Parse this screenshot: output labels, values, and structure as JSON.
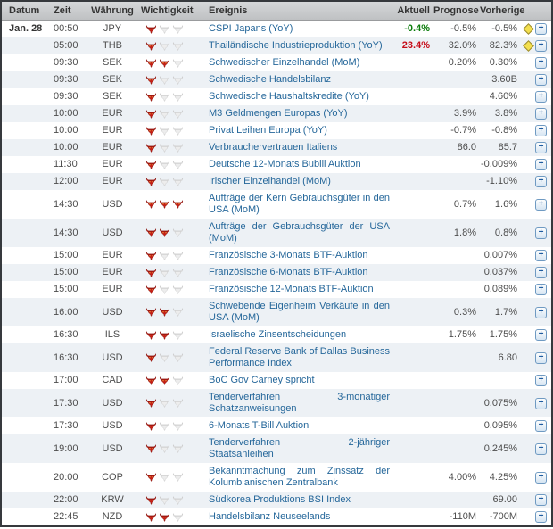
{
  "table": {
    "columns": {
      "datum": "Datum",
      "zeit": "Zeit",
      "waehrung": "Währung",
      "wichtigkeit": "Wichtigkeit",
      "ereignis": "Ereignis",
      "aktuell": "Aktuell",
      "prognose": "Prognose",
      "vorherige": "Vorherige"
    },
    "importance_scale_max": 3,
    "rows": [
      {
        "datum": "Jan. 28",
        "zeit": "00:50",
        "waehrung": "JPY",
        "wichtigkeit": 1,
        "ereignis": "CSPI Japans (YoY)",
        "aktuell": "-0.4%",
        "aktuell_status": "green",
        "prognose": "-0.5%",
        "vorherige": "-0.5%",
        "alert": true
      },
      {
        "datum": "",
        "zeit": "05:00",
        "waehrung": "THB",
        "wichtigkeit": 1,
        "ereignis": "Thailändische Industrieproduktion (YoY)",
        "aktuell": "23.4%",
        "aktuell_status": "red",
        "prognose": "32.0%",
        "vorherige": "82.3%",
        "alert": true
      },
      {
        "datum": "",
        "zeit": "09:30",
        "waehrung": "SEK",
        "wichtigkeit": 2,
        "ereignis": "Schwedischer Einzelhandel (MoM)",
        "aktuell": "",
        "aktuell_status": "",
        "prognose": "0.20%",
        "vorherige": "0.30%",
        "alert": false
      },
      {
        "datum": "",
        "zeit": "09:30",
        "waehrung": "SEK",
        "wichtigkeit": 1,
        "ereignis": "Schwedische Handelsbilanz",
        "aktuell": "",
        "aktuell_status": "",
        "prognose": "",
        "vorherige": "3.60B",
        "alert": false
      },
      {
        "datum": "",
        "zeit": "09:30",
        "waehrung": "SEK",
        "wichtigkeit": 1,
        "ereignis": "Schwedische Haushaltskredite (YoY)",
        "aktuell": "",
        "aktuell_status": "",
        "prognose": "",
        "vorherige": "4.60%",
        "alert": false
      },
      {
        "datum": "",
        "zeit": "10:00",
        "waehrung": "EUR",
        "wichtigkeit": 1,
        "ereignis": "M3 Geldmengen Europas (YoY)",
        "aktuell": "",
        "aktuell_status": "",
        "prognose": "3.9%",
        "vorherige": "3.8%",
        "alert": false
      },
      {
        "datum": "",
        "zeit": "10:00",
        "waehrung": "EUR",
        "wichtigkeit": 1,
        "ereignis": "Privat Leihen Europa (YoY)",
        "aktuell": "",
        "aktuell_status": "",
        "prognose": "-0.7%",
        "vorherige": "-0.8%",
        "alert": false
      },
      {
        "datum": "",
        "zeit": "10:00",
        "waehrung": "EUR",
        "wichtigkeit": 1,
        "ereignis": "Verbrauchervertrauen Italiens",
        "aktuell": "",
        "aktuell_status": "",
        "prognose": "86.0",
        "vorherige": "85.7",
        "alert": false
      },
      {
        "datum": "",
        "zeit": "11:30",
        "waehrung": "EUR",
        "wichtigkeit": 1,
        "ereignis": "Deutsche 12-Monats Bubill Auktion",
        "aktuell": "",
        "aktuell_status": "",
        "prognose": "",
        "vorherige": "-0.009%",
        "alert": false
      },
      {
        "datum": "",
        "zeit": "12:00",
        "waehrung": "EUR",
        "wichtigkeit": 1,
        "ereignis": "Irischer Einzelhandel (MoM)",
        "aktuell": "",
        "aktuell_status": "",
        "prognose": "",
        "vorherige": "-1.10%",
        "alert": false
      },
      {
        "datum": "",
        "zeit": "14:30",
        "waehrung": "USD",
        "wichtigkeit": 3,
        "ereignis": "Aufträge der Kern Gebrauchsgüter in den USA (MoM)",
        "aktuell": "",
        "aktuell_status": "",
        "prognose": "0.7%",
        "vorherige": "1.6%",
        "alert": false
      },
      {
        "datum": "",
        "zeit": "14:30",
        "waehrung": "USD",
        "wichtigkeit": 2,
        "ereignis": "Aufträge der Gebrauchsgüter der USA (MoM)",
        "aktuell": "",
        "aktuell_status": "",
        "prognose": "1.8%",
        "vorherige": "0.8%",
        "alert": false
      },
      {
        "datum": "",
        "zeit": "15:00",
        "waehrung": "EUR",
        "wichtigkeit": 1,
        "ereignis": "Französische 3-Monats BTF-Auktion",
        "aktuell": "",
        "aktuell_status": "",
        "prognose": "",
        "vorherige": "0.007%",
        "alert": false
      },
      {
        "datum": "",
        "zeit": "15:00",
        "waehrung": "EUR",
        "wichtigkeit": 1,
        "ereignis": "Französische 6-Monats BTF-Auktion",
        "aktuell": "",
        "aktuell_status": "",
        "prognose": "",
        "vorherige": "0.037%",
        "alert": false
      },
      {
        "datum": "",
        "zeit": "15:00",
        "waehrung": "EUR",
        "wichtigkeit": 1,
        "ereignis": "Französische 12-Monats BTF-Auktion",
        "aktuell": "",
        "aktuell_status": "",
        "prognose": "",
        "vorherige": "0.089%",
        "alert": false
      },
      {
        "datum": "",
        "zeit": "16:00",
        "waehrung": "USD",
        "wichtigkeit": 2,
        "ereignis": "Schwebende Eigenheim Verkäufe in den USA (MoM)",
        "aktuell": "",
        "aktuell_status": "",
        "prognose": "0.3%",
        "vorherige": "1.7%",
        "alert": false
      },
      {
        "datum": "",
        "zeit": "16:30",
        "waehrung": "ILS",
        "wichtigkeit": 2,
        "ereignis": "Israelische Zinsentscheidungen",
        "aktuell": "",
        "aktuell_status": "",
        "prognose": "1.75%",
        "vorherige": "1.75%",
        "alert": false
      },
      {
        "datum": "",
        "zeit": "16:30",
        "waehrung": "USD",
        "wichtigkeit": 1,
        "ereignis": "Federal Reserve Bank of Dallas Business Performance Index",
        "aktuell": "",
        "aktuell_status": "",
        "prognose": "",
        "vorherige": "6.80",
        "alert": false
      },
      {
        "datum": "",
        "zeit": "17:00",
        "waehrung": "CAD",
        "wichtigkeit": 2,
        "ereignis": "BoC Gov Carney spricht",
        "aktuell": "",
        "aktuell_status": "",
        "prognose": "",
        "vorherige": "",
        "alert": false
      },
      {
        "datum": "",
        "zeit": "17:30",
        "waehrung": "USD",
        "wichtigkeit": 1,
        "ereignis": "Tenderverfahren 3-monatiger Schatzanweisungen",
        "aktuell": "",
        "aktuell_status": "",
        "prognose": "",
        "vorherige": "0.075%",
        "alert": false
      },
      {
        "datum": "",
        "zeit": "17:30",
        "waehrung": "USD",
        "wichtigkeit": 1,
        "ereignis": "6-Monats T-Bill Auktion",
        "aktuell": "",
        "aktuell_status": "",
        "prognose": "",
        "vorherige": "0.095%",
        "alert": false
      },
      {
        "datum": "",
        "zeit": "19:00",
        "waehrung": "USD",
        "wichtigkeit": 1,
        "ereignis": "Tenderverfahren 2-jähriger Staatsanleihen",
        "aktuell": "",
        "aktuell_status": "",
        "prognose": "",
        "vorherige": "0.245%",
        "alert": false
      },
      {
        "datum": "",
        "zeit": "20:00",
        "waehrung": "COP",
        "wichtigkeit": 1,
        "ereignis": "Bekanntmachung zum Zinssatz der Kolumbianischen Zentralbank",
        "aktuell": "",
        "aktuell_status": "",
        "prognose": "4.00%",
        "vorherige": "4.25%",
        "alert": false
      },
      {
        "datum": "",
        "zeit": "22:00",
        "waehrung": "KRW",
        "wichtigkeit": 1,
        "ereignis": "Südkorea Produktions BSI Index",
        "aktuell": "",
        "aktuell_status": "",
        "prognose": "",
        "vorherige": "69.00",
        "alert": false
      },
      {
        "datum": "",
        "zeit": "22:45",
        "waehrung": "NZD",
        "wichtigkeit": 2,
        "ereignis": "Handelsbilanz Neuseelands",
        "aktuell": "",
        "aktuell_status": "",
        "prognose": "-110M",
        "vorherige": "-700M",
        "alert": false
      }
    ]
  },
  "icons": {
    "importance_active": "red-bull-icon",
    "importance_inactive": "gray-bull-icon",
    "alert": "yellow-diamond-icon",
    "expand": "plus-icon",
    "expand_glyph": "+"
  },
  "colors": {
    "actual_better": "#0b7c0b",
    "actual_worse": "#c60d1a",
    "event_link": "#25679a",
    "stripe_row": "#edf1f5",
    "header_bg": "#c9cbcd",
    "bull_red": "#c52018",
    "bull_gray": "#ededed",
    "diamond_yellow": "#f3df4e"
  }
}
